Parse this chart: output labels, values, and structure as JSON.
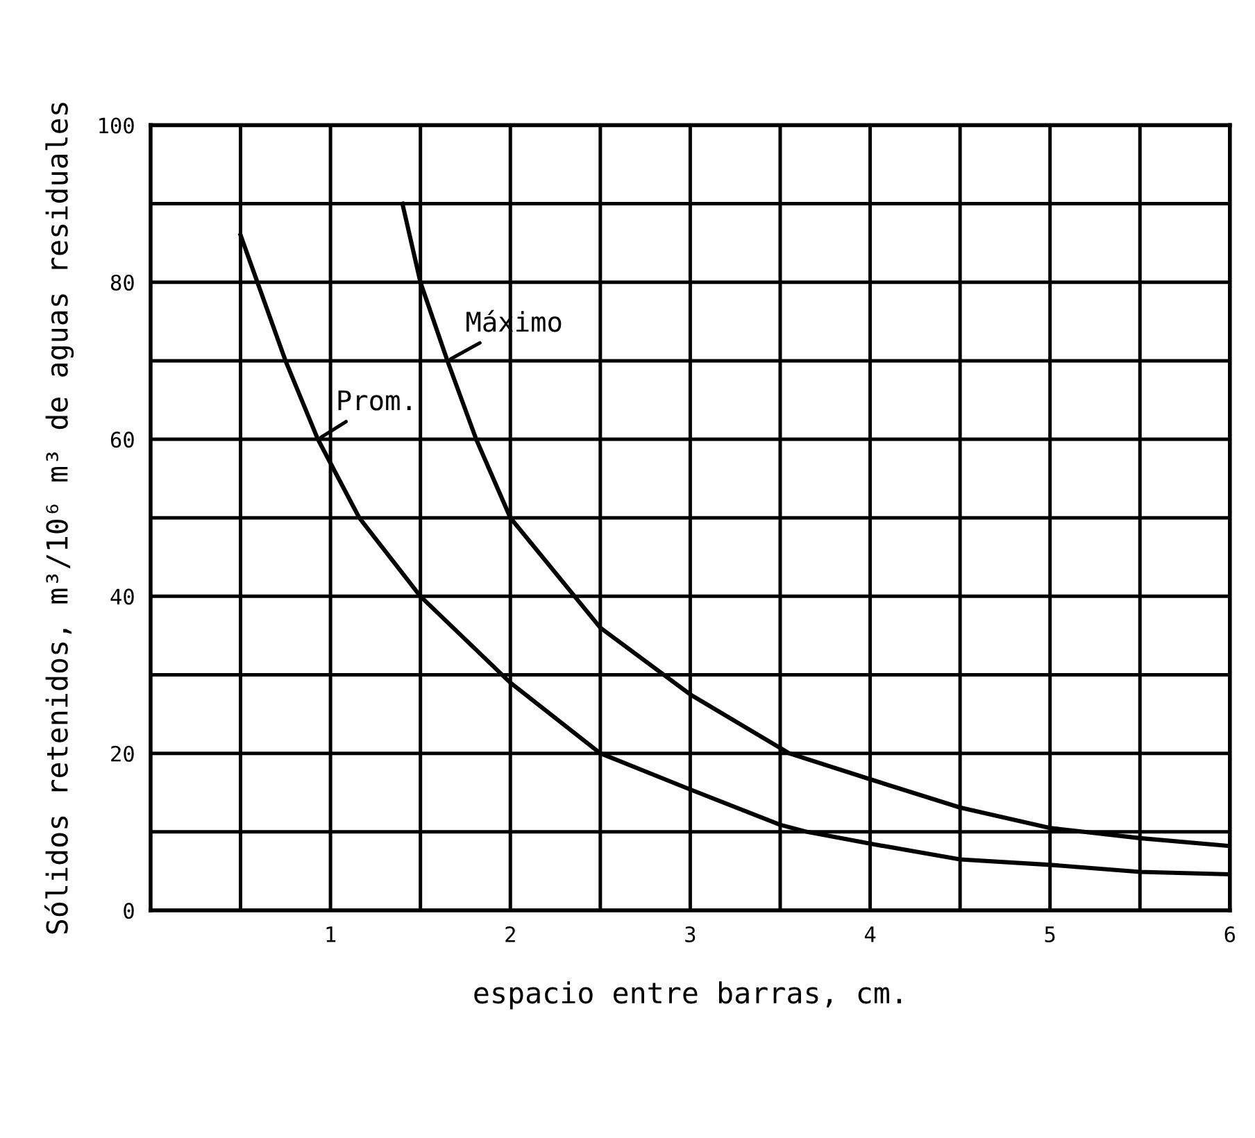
{
  "chart_data": {
    "type": "line",
    "xlabel": "espacio entre barras, cm.",
    "ylabel": "Sólidos retenidos, m³/10⁶ m³ de aguas residuales",
    "series": [
      {
        "name": "Prom.",
        "color": "#000000",
        "x": [
          0.5,
          0.75,
          0.93,
          1.16,
          1.5,
          2,
          2.5,
          3,
          3.5,
          3.65,
          4,
          4.5,
          5,
          5.5,
          6
        ],
        "values": [
          86,
          70,
          60,
          50,
          40,
          29,
          20,
          15.4,
          10.9,
          10,
          8.5,
          6.5,
          5.8,
          4.9,
          4.6
        ]
      },
      {
        "name": "Máximo",
        "color": "#000000",
        "x": [
          1.4,
          1.5,
          1.65,
          1.81,
          2,
          2.5,
          3,
          3.55,
          4,
          4.5,
          5,
          5.5,
          6
        ],
        "values": [
          90,
          80,
          70,
          60,
          50,
          36,
          27.5,
          20,
          16.7,
          13.1,
          10.5,
          9.2,
          8.2
        ]
      }
    ],
    "xlim": [
      0,
      6
    ],
    "ylim": [
      0,
      100
    ],
    "xticks": [
      {
        "value": 0.5,
        "label": null
      },
      1,
      {
        "value": 1.5,
        "label": null
      },
      2,
      {
        "value": 2.5,
        "label": null
      },
      3,
      {
        "value": 3.5,
        "label": null
      },
      4,
      {
        "value": 4.5,
        "label": null
      },
      5,
      {
        "value": 5.5,
        "label": null
      },
      6
    ],
    "yticks": [
      0,
      {
        "value": 10,
        "label": null
      },
      20,
      {
        "value": 30,
        "label": null
      },
      40,
      {
        "value": 50,
        "label": null
      },
      60,
      {
        "value": 70,
        "label": null
      },
      80,
      {
        "value": 90,
        "label": null
      },
      100
    ],
    "grid": true,
    "legend": false,
    "marker": "none",
    "line_style": "solid"
  }
}
